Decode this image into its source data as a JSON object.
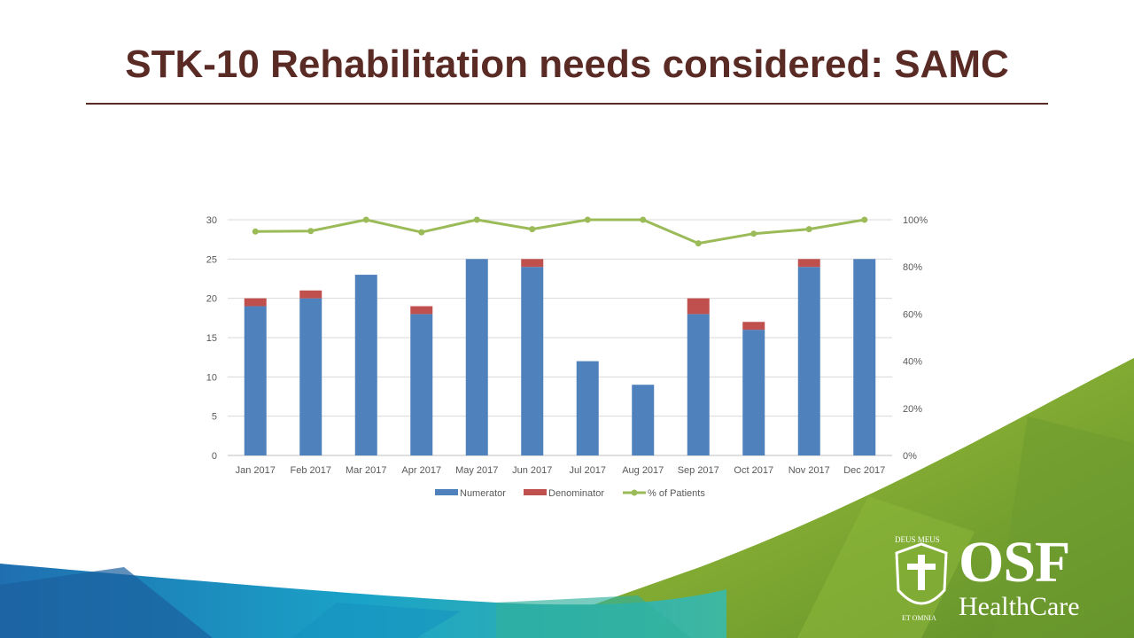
{
  "slide": {
    "title": "STK-10 Rehabilitation needs considered: SAMC"
  },
  "logo": {
    "name": "OSF",
    "subname": "HealthCare",
    "seal_text_top": "DEUS MEUS",
    "seal_text_bottom": "ET OMNIA"
  },
  "colors": {
    "title": "#5a2a25",
    "numerator": "#4f81bd",
    "denominator": "#c0504d",
    "percent": "#9bbb59",
    "grid": "#d9d9d9"
  },
  "chart_data": {
    "type": "bar",
    "stacked": true,
    "categories": [
      "Jan 2017",
      "Feb 2017",
      "Mar 2017",
      "Apr 2017",
      "May 2017",
      "Jun 2017",
      "Jul 2017",
      "Aug 2017",
      "Sep 2017",
      "Oct 2017",
      "Nov 2017",
      "Dec 2017"
    ],
    "series": [
      {
        "name": "Numerator",
        "type": "bar",
        "axis": "left",
        "values": [
          19,
          20,
          23,
          18,
          25,
          24,
          12,
          9,
          18,
          16,
          24,
          25
        ]
      },
      {
        "name": "Denominator",
        "type": "bar",
        "axis": "left",
        "values": [
          1,
          1,
          0,
          1,
          0,
          1,
          0,
          0,
          2,
          1,
          1,
          0
        ]
      },
      {
        "name": "% of Patients",
        "type": "line",
        "axis": "right",
        "values": [
          0.95,
          0.952,
          1.0,
          0.947,
          1.0,
          0.96,
          1.0,
          1.0,
          0.9,
          0.941,
          0.96,
          1.0
        ]
      }
    ],
    "y_left": {
      "min": 0,
      "max": 30,
      "ticks": [
        "0",
        "5",
        "10",
        "15",
        "20",
        "25",
        "30"
      ]
    },
    "y_right": {
      "min": 0,
      "max": 1,
      "ticks": [
        "0%",
        "20%",
        "40%",
        "60%",
        "80%",
        "100%"
      ]
    },
    "grid": true,
    "legend": "bottom"
  }
}
